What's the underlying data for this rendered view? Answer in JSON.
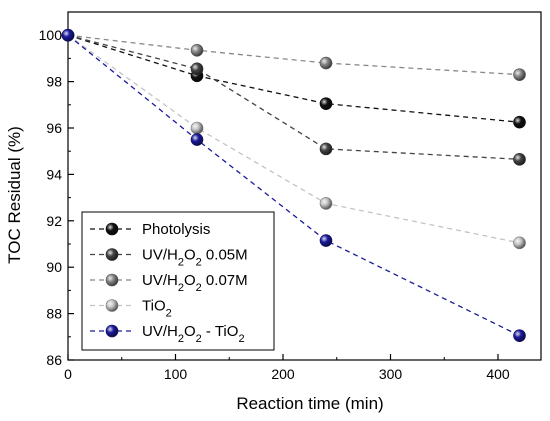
{
  "chart_data": {
    "type": "line",
    "xlabel": "Reaction time (min)",
    "ylabel": "TOC Residual (%)",
    "xlim": [
      0,
      440
    ],
    "ylim": [
      86,
      101
    ],
    "x_ticks": [
      0,
      100,
      200,
      300,
      400
    ],
    "y_ticks": [
      86,
      88,
      90,
      92,
      94,
      96,
      98,
      100
    ],
    "grid": false,
    "legend_position": "bottom-left",
    "x": [
      0,
      120,
      240,
      420
    ],
    "series": [
      {
        "name": "Photolysis",
        "values": [
          100,
          98.25,
          97.05,
          96.25
        ],
        "color": "#111111"
      },
      {
        "name": "UV/H2O2 0.05M",
        "values": [
          100,
          98.55,
          95.1,
          94.65
        ],
        "color": "#444444"
      },
      {
        "name": "UV/H2O2 0.07M",
        "values": [
          100,
          99.35,
          98.8,
          98.3
        ],
        "color": "#888888"
      },
      {
        "name": "TiO2",
        "values": [
          100,
          96.0,
          92.75,
          91.05
        ],
        "color": "#c4c4c4"
      },
      {
        "name": "UV/H2O2 - TiO2",
        "values": [
          100,
          95.5,
          91.15,
          87.05
        ],
        "color": "#1a1a9e"
      }
    ]
  }
}
